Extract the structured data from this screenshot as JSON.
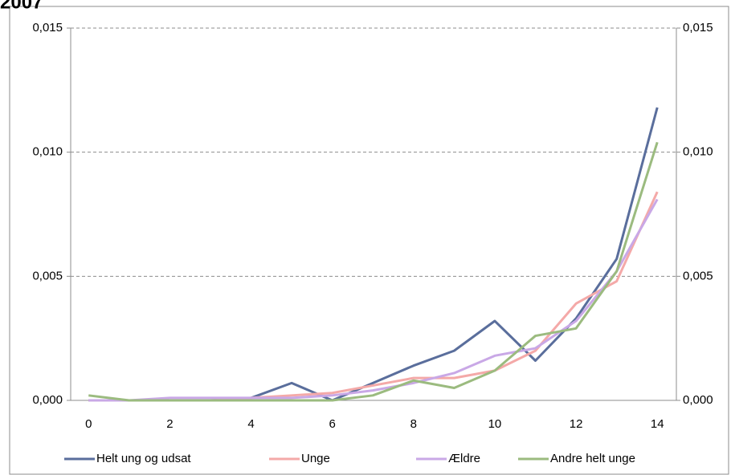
{
  "chart_data": {
    "type": "line",
    "title": "2007",
    "x": [
      0,
      1,
      2,
      3,
      4,
      5,
      6,
      7,
      8,
      9,
      10,
      11,
      12,
      13,
      14
    ],
    "xlim": [
      -0.44,
      14.47
    ],
    "xticks": [
      0,
      2,
      4,
      6,
      8,
      10,
      12,
      14
    ],
    "ylim": [
      0,
      0.015
    ],
    "yticks": [
      {
        "value": 0,
        "label": "0,000"
      },
      {
        "value": 0.005,
        "label": "0,005"
      },
      {
        "value": 0.01,
        "label": "0,010"
      },
      {
        "value": 0.015,
        "label": "0,015"
      }
    ],
    "y2lim": [
      0,
      0.015
    ],
    "y2ticks": [
      {
        "value": 0,
        "label": "0,000"
      },
      {
        "value": 0.005,
        "label": "0,005"
      },
      {
        "value": 0.01,
        "label": "0,010"
      },
      {
        "value": 0.015,
        "label": "0,015"
      }
    ],
    "grid": true,
    "legend": "bottom",
    "series": [
      {
        "name": "Helt ung og udsat",
        "color": "#5a6e9c",
        "values": [
          0,
          0,
          0,
          0,
          0.0001,
          0.0007,
          0,
          0.0007,
          0.0014,
          0.002,
          0.0032,
          0.0016,
          0.0033,
          0.0057,
          0.0118
        ]
      },
      {
        "name": "Unge",
        "color": "#f4a9a8",
        "values": [
          0,
          0,
          0,
          0,
          0.0001,
          0.0002,
          0.0003,
          0.0006,
          0.0009,
          0.0009,
          0.0012,
          0.002,
          0.0039,
          0.0048,
          0.0084
        ]
      },
      {
        "name": "Ældre",
        "color": "#c9a8e6",
        "values": [
          0,
          0,
          0.0001,
          0.0001,
          0.0001,
          0.0001,
          0.0002,
          0.0004,
          0.0007,
          0.0011,
          0.0018,
          0.0021,
          0.0032,
          0.0052,
          0.0081
        ]
      },
      {
        "name": "Andre helt unge",
        "color": "#9bbb7f",
        "values": [
          0.0002,
          0,
          0,
          0,
          0,
          0,
          0,
          0.0002,
          0.0008,
          0.0005,
          0.0012,
          0.0026,
          0.0029,
          0.0052,
          0.0104
        ]
      }
    ]
  }
}
